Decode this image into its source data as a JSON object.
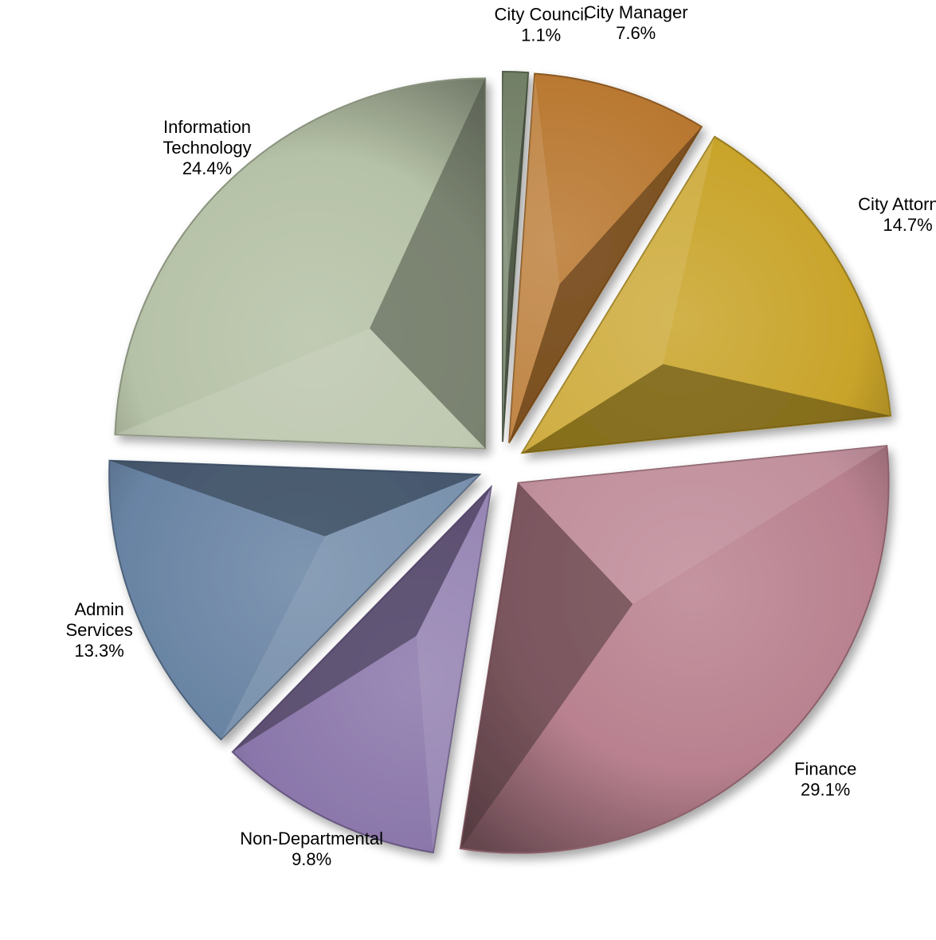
{
  "chart_data": {
    "type": "pie",
    "title": "",
    "slices": [
      {
        "name_lines": [
          "City Council"
        ],
        "label": "1.1%",
        "value": 1.1,
        "color": "#6f7d63"
      },
      {
        "name_lines": [
          "City Manager"
        ],
        "label": "7.6%",
        "value": 7.6,
        "color": "#b8772f"
      },
      {
        "name_lines": [
          "City Attorney"
        ],
        "label": "14.7%",
        "value": 14.7,
        "color": "#c9a42a"
      },
      {
        "name_lines": [
          "Finance"
        ],
        "label": "29.1%",
        "value": 29.1,
        "color": "#b9818f"
      },
      {
        "name_lines": [
          "Non-Departmental"
        ],
        "label": "9.8%",
        "value": 9.8,
        "color": "#8a76aa"
      },
      {
        "name_lines": [
          "Admin",
          "Services"
        ],
        "label": "13.3%",
        "value": 13.3,
        "color": "#6883a3"
      },
      {
        "name_lines": [
          "Information",
          "Technology"
        ],
        "label": "24.4%",
        "value": 24.4,
        "color": "#b6c2a7"
      }
    ],
    "start": "12 o'clock",
    "direction": "clockwise",
    "exploded": true,
    "legend": "none",
    "data_labels": "outside"
  }
}
